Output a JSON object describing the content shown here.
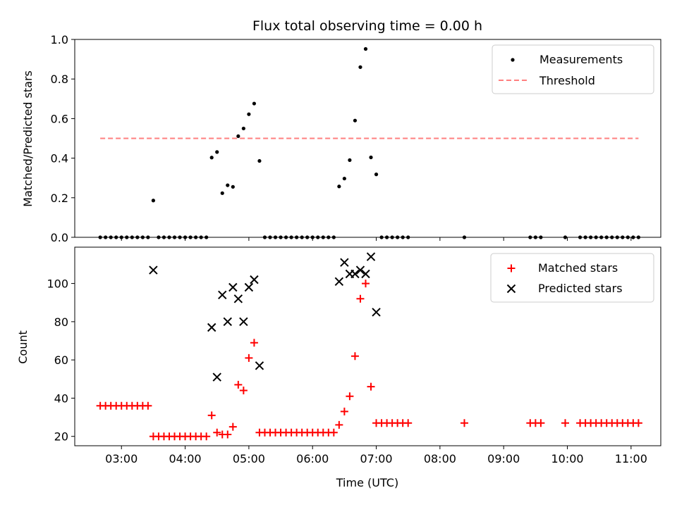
{
  "chart_data": [
    {
      "type": "scatter",
      "title": "Flux total observing time = 0.00 h",
      "ylabel": "Matched/Predicted stars",
      "xlabel": "",
      "ylim": [
        0,
        1
      ],
      "yticks": [
        "0.0",
        "0.2",
        "0.4",
        "0.6",
        "0.8",
        "1.0"
      ],
      "grid": false,
      "legend_position": "top-right",
      "colors": {
        "measurements": "#000000",
        "threshold": "#ff7f7f"
      },
      "series": [
        {
          "name": "Measurements",
          "marker": "dot",
          "points": [
            [
              "02:40",
              0
            ],
            [
              "02:45",
              0
            ],
            [
              "02:50",
              0
            ],
            [
              "02:55",
              0
            ],
            [
              "03:00",
              0
            ],
            [
              "03:05",
              0
            ],
            [
              "03:10",
              0
            ],
            [
              "03:15",
              0
            ],
            [
              "03:20",
              0
            ],
            [
              "03:25",
              0
            ],
            [
              "03:30",
              0.186
            ],
            [
              "03:35",
              0
            ],
            [
              "03:40",
              0
            ],
            [
              "03:45",
              0
            ],
            [
              "03:50",
              0
            ],
            [
              "03:55",
              0
            ],
            [
              "04:00",
              0
            ],
            [
              "04:05",
              0
            ],
            [
              "04:10",
              0
            ],
            [
              "04:15",
              0
            ],
            [
              "04:20",
              0
            ],
            [
              "04:25",
              0.403
            ],
            [
              "04:30",
              0.431
            ],
            [
              "04:35",
              0.223
            ],
            [
              "04:40",
              0.263
            ],
            [
              "04:45",
              0.255
            ],
            [
              "04:50",
              0.511
            ],
            [
              "04:55",
              0.55
            ],
            [
              "05:00",
              0.622
            ],
            [
              "05:05",
              0.676
            ],
            [
              "05:10",
              0.386
            ],
            [
              "05:15",
              0
            ],
            [
              "05:20",
              0
            ],
            [
              "05:25",
              0
            ],
            [
              "05:30",
              0
            ],
            [
              "05:35",
              0
            ],
            [
              "05:40",
              0
            ],
            [
              "05:45",
              0
            ],
            [
              "05:50",
              0
            ],
            [
              "05:55",
              0
            ],
            [
              "06:00",
              0
            ],
            [
              "06:05",
              0
            ],
            [
              "06:10",
              0
            ],
            [
              "06:15",
              0
            ],
            [
              "06:20",
              0
            ],
            [
              "06:25",
              0.257
            ],
            [
              "06:30",
              0.297
            ],
            [
              "06:35",
              0.39
            ],
            [
              "06:40",
              0.59
            ],
            [
              "06:45",
              0.86
            ],
            [
              "06:50",
              0.952
            ],
            [
              "06:55",
              0.404
            ],
            [
              "07:00",
              0.318
            ],
            [
              "07:05",
              0
            ],
            [
              "07:10",
              0
            ],
            [
              "07:15",
              0
            ],
            [
              "07:20",
              0
            ],
            [
              "07:25",
              0
            ],
            [
              "07:30",
              0
            ],
            [
              "08:23",
              0
            ],
            [
              "09:25",
              0
            ],
            [
              "09:30",
              0
            ],
            [
              "09:35",
              0
            ],
            [
              "09:58",
              0
            ],
            [
              "10:12",
              0
            ],
            [
              "10:17",
              0
            ],
            [
              "10:22",
              0
            ],
            [
              "10:27",
              0
            ],
            [
              "10:32",
              0
            ],
            [
              "10:37",
              0
            ],
            [
              "10:42",
              0
            ],
            [
              "10:47",
              0
            ],
            [
              "10:52",
              0
            ],
            [
              "10:57",
              0
            ],
            [
              "11:02",
              0
            ],
            [
              "11:07",
              0
            ]
          ]
        },
        {
          "name": "Threshold",
          "style": "dashed-line",
          "points": [
            [
              "02:40",
              0.5
            ],
            [
              "11:07",
              0.5
            ]
          ]
        }
      ]
    },
    {
      "type": "scatter",
      "title": "",
      "ylabel": "Count",
      "xlabel": "Time (UTC)",
      "ylim": [
        15.1,
        119
      ],
      "yticks": [
        "20",
        "40",
        "60",
        "80",
        "100"
      ],
      "xlim": [
        "02:16",
        "11:28"
      ],
      "xticks": [
        "03:00",
        "04:00",
        "05:00",
        "06:00",
        "07:00",
        "08:00",
        "09:00",
        "10:00",
        "11:00"
      ],
      "grid": false,
      "legend_position": "top-right",
      "colors": {
        "matched": "#ff0000",
        "predicted": "#000000"
      },
      "series": [
        {
          "name": "Matched stars",
          "marker": "plus",
          "points": [
            [
              "02:40",
              36
            ],
            [
              "02:45",
              36
            ],
            [
              "02:50",
              36
            ],
            [
              "02:55",
              36
            ],
            [
              "03:00",
              36
            ],
            [
              "03:05",
              36
            ],
            [
              "03:10",
              36
            ],
            [
              "03:15",
              36
            ],
            [
              "03:20",
              36
            ],
            [
              "03:25",
              36
            ],
            [
              "03:30",
              20
            ],
            [
              "03:35",
              20
            ],
            [
              "03:40",
              20
            ],
            [
              "03:45",
              20
            ],
            [
              "03:50",
              20
            ],
            [
              "03:55",
              20
            ],
            [
              "04:00",
              20
            ],
            [
              "04:05",
              20
            ],
            [
              "04:10",
              20
            ],
            [
              "04:15",
              20
            ],
            [
              "04:20",
              20
            ],
            [
              "04:25",
              31
            ],
            [
              "04:30",
              22
            ],
            [
              "04:35",
              21
            ],
            [
              "04:40",
              21
            ],
            [
              "04:45",
              25
            ],
            [
              "04:50",
              47
            ],
            [
              "04:55",
              44
            ],
            [
              "05:00",
              61
            ],
            [
              "05:05",
              69
            ],
            [
              "05:10",
              22
            ],
            [
              "05:15",
              22
            ],
            [
              "05:20",
              22
            ],
            [
              "05:25",
              22
            ],
            [
              "05:30",
              22
            ],
            [
              "05:35",
              22
            ],
            [
              "05:40",
              22
            ],
            [
              "05:45",
              22
            ],
            [
              "05:50",
              22
            ],
            [
              "05:55",
              22
            ],
            [
              "06:00",
              22
            ],
            [
              "06:05",
              22
            ],
            [
              "06:10",
              22
            ],
            [
              "06:15",
              22
            ],
            [
              "06:20",
              22
            ],
            [
              "06:25",
              26
            ],
            [
              "06:30",
              33
            ],
            [
              "06:35",
              41
            ],
            [
              "06:40",
              62
            ],
            [
              "06:45",
              92
            ],
            [
              "06:50",
              100
            ],
            [
              "06:55",
              46
            ],
            [
              "07:00",
              27
            ],
            [
              "07:05",
              27
            ],
            [
              "07:10",
              27
            ],
            [
              "07:15",
              27
            ],
            [
              "07:20",
              27
            ],
            [
              "07:25",
              27
            ],
            [
              "07:30",
              27
            ],
            [
              "08:23",
              27
            ],
            [
              "09:25",
              27
            ],
            [
              "09:30",
              27
            ],
            [
              "09:35",
              27
            ],
            [
              "09:58",
              27
            ],
            [
              "10:12",
              27
            ],
            [
              "10:17",
              27
            ],
            [
              "10:22",
              27
            ],
            [
              "10:27",
              27
            ],
            [
              "10:32",
              27
            ],
            [
              "10:37",
              27
            ],
            [
              "10:42",
              27
            ],
            [
              "10:47",
              27
            ],
            [
              "10:52",
              27
            ],
            [
              "10:57",
              27
            ],
            [
              "11:02",
              27
            ],
            [
              "11:07",
              27
            ]
          ]
        },
        {
          "name": "Predicted stars",
          "marker": "x",
          "points": [
            [
              "03:30",
              107
            ],
            [
              "04:25",
              77
            ],
            [
              "04:30",
              51
            ],
            [
              "04:35",
              94
            ],
            [
              "04:40",
              80
            ],
            [
              "04:45",
              98
            ],
            [
              "04:50",
              92
            ],
            [
              "04:55",
              80
            ],
            [
              "05:00",
              98
            ],
            [
              "05:05",
              102
            ],
            [
              "05:10",
              57
            ],
            [
              "06:25",
              101
            ],
            [
              "06:30",
              111
            ],
            [
              "06:35",
              105
            ],
            [
              "06:40",
              105
            ],
            [
              "06:45",
              107
            ],
            [
              "06:50",
              105
            ],
            [
              "06:55",
              114
            ],
            [
              "07:00",
              85
            ]
          ]
        }
      ]
    }
  ]
}
